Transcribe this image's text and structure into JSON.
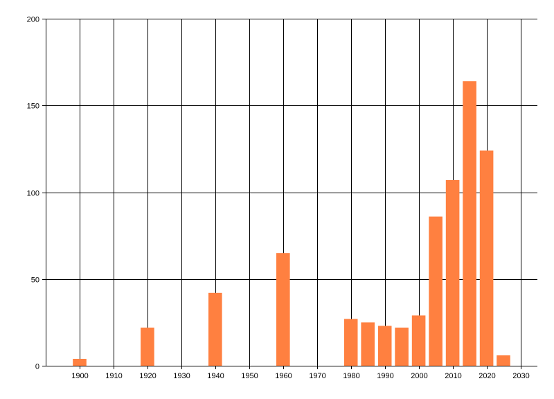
{
  "chart_data": {
    "type": "bar",
    "title": "",
    "xlabel": "",
    "ylabel": "",
    "x": [
      1900,
      1920,
      1940,
      1960,
      1980,
      1985,
      1990,
      1995,
      2000,
      2005,
      2010,
      2015,
      2020,
      2025
    ],
    "values": [
      4,
      22,
      42,
      65,
      27,
      25,
      23,
      22,
      29,
      86,
      107,
      164,
      124,
      6
    ],
    "xlim": [
      1890,
      2035
    ],
    "ylim": [
      0,
      200
    ],
    "xticks": [
      1900,
      1910,
      1920,
      1930,
      1940,
      1950,
      1960,
      1970,
      1980,
      1990,
      2000,
      2010,
      2020,
      2030
    ],
    "yticks": [
      0,
      50,
      100,
      150,
      200
    ],
    "bar_color": "#ff8040",
    "grid": true,
    "legend": "none"
  }
}
